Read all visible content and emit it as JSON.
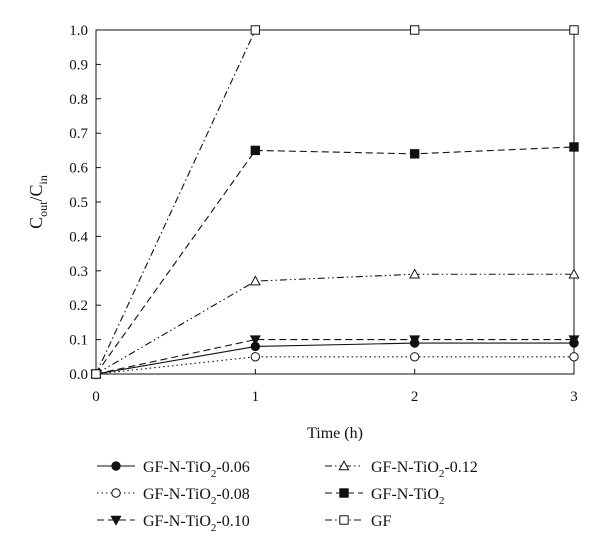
{
  "chart_data": {
    "type": "line",
    "xlabel": "Time (h)",
    "ylabel": {
      "base": "C",
      "sub1": "out",
      "sep": "/C",
      "sub2": "in"
    },
    "xlim": [
      0,
      3
    ],
    "ylim": [
      0,
      1.0
    ],
    "x_ticks": [
      "0",
      "1",
      "2",
      "3"
    ],
    "y_ticks": [
      "0.0",
      "0.1",
      "0.2",
      "0.3",
      "0.4",
      "0.5",
      "0.6",
      "0.7",
      "0.8",
      "0.9",
      "1.0"
    ],
    "grid": false,
    "legend_position": "bottom",
    "x": [
      0,
      1,
      2,
      3
    ],
    "series": [
      {
        "name": "GF-N-TiO2-0.06",
        "label_main": "GF-N-TiO",
        "label_sub": "2",
        "label_tail": "-0.06",
        "marker": "filled-circle",
        "dash": "",
        "values": [
          0,
          0.08,
          0.09,
          0.09
        ]
      },
      {
        "name": "GF-N-TiO2-0.08",
        "label_main": "GF-N-TiO",
        "label_sub": "2",
        "label_tail": "-0.08",
        "marker": "open-circle",
        "dash": "1.5 3",
        "values": [
          0,
          0.05,
          0.05,
          0.05
        ]
      },
      {
        "name": "GF-N-TiO2-0.10",
        "label_main": "GF-N-TiO",
        "label_sub": "2",
        "label_tail": "-0.10",
        "marker": "filled-triangle-down",
        "dash": "7 4",
        "values": [
          0,
          0.1,
          0.1,
          0.1
        ]
      },
      {
        "name": "GF-N-TiO2-0.12",
        "label_main": "GF-N-TiO",
        "label_sub": "2",
        "label_tail": "-0.12",
        "marker": "open-triangle-up",
        "dash": "7 3 1.5 3 1.5 3",
        "values": [
          0,
          0.27,
          0.29,
          0.29
        ]
      },
      {
        "name": "GF-N-TiO2",
        "label_main": "GF-N-TiO",
        "label_sub": "2",
        "label_tail": "",
        "marker": "filled-square",
        "dash": "7 4",
        "values": [
          0,
          0.65,
          0.64,
          0.66
        ]
      },
      {
        "name": "GF",
        "label_main": "GF",
        "label_sub": "",
        "label_tail": "",
        "marker": "open-square",
        "dash": "7 3 1.5 3",
        "values": [
          0,
          1.0,
          1.0,
          1.0
        ]
      }
    ]
  }
}
